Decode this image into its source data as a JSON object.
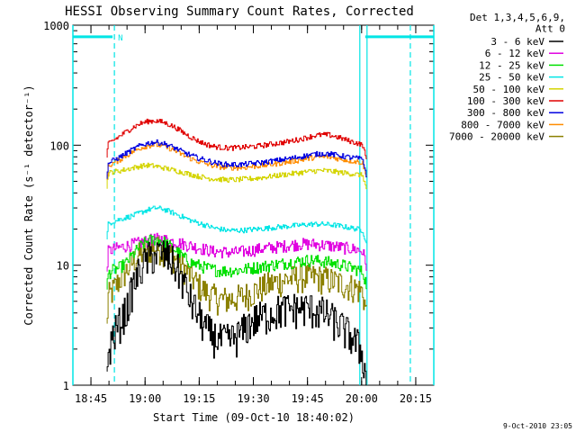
{
  "chart_data": {
    "type": "line",
    "title": "HESSI Observing Summary Count Rates, Corrected",
    "xlabel": "Start Time (09-Oct-10 18:40:02)",
    "ylabel": "Corrected Count Rate (s⁻¹ detector⁻¹)",
    "y_scale": "log",
    "ylim": [
      1,
      1000
    ],
    "xlim_minutes_after_1840": [
      0,
      100
    ],
    "xticks": [
      {
        "label": "18:45",
        "t": 5
      },
      {
        "label": "19:00",
        "t": 20
      },
      {
        "label": "19:15",
        "t": 35
      },
      {
        "label": "19:30",
        "t": 50
      },
      {
        "label": "19:45",
        "t": 65
      },
      {
        "label": "20:00",
        "t": 80
      },
      {
        "label": "20:15",
        "t": 95
      }
    ],
    "yticks": [
      {
        "label": "1000",
        "v": 1000
      },
      {
        "label": "100",
        "v": 100
      },
      {
        "label": "10",
        "v": 10
      },
      {
        "label": "1",
        "v": 1
      }
    ],
    "legend_header": [
      "Det 1,3,4,5,6,9,",
      "Att 0"
    ],
    "legend_position": "right",
    "night_marker_label": "N",
    "night_bar": {
      "value": 800,
      "color": "#00e5e5",
      "segments": [
        [
          0,
          11
        ],
        [
          81,
          100
        ]
      ]
    },
    "boundaries": [
      {
        "t": 11.5,
        "style": "dashed",
        "color": "#00e5e5"
      },
      {
        "t": 79.5,
        "style": "solid",
        "color": "#00e5e5"
      },
      {
        "t": 81.5,
        "style": "solid",
        "color": "#00e5e5"
      },
      {
        "t": 93.5,
        "style": "dashed",
        "color": "#00e5e5"
      }
    ],
    "edge_lines": [
      {
        "t": 0,
        "color": "#00e5e5"
      },
      {
        "t": 100,
        "color": "#00e5e5"
      }
    ],
    "series": [
      {
        "name": "3 - 6 keV",
        "color": "#000000",
        "t": [
          9.5,
          10,
          11,
          13,
          15,
          17,
          19,
          21,
          23,
          25,
          27,
          29,
          31,
          33,
          35,
          37,
          39,
          41,
          43,
          45,
          47,
          49,
          51,
          53,
          55,
          57,
          59,
          61,
          63,
          65,
          67,
          69,
          71,
          73,
          75,
          77,
          79,
          80.5,
          81.5
        ],
        "values": [
          1,
          1.8,
          2.5,
          3.3,
          4.3,
          7,
          9.5,
          11.5,
          12.5,
          12.5,
          11.5,
          9.5,
          7,
          5,
          3.8,
          3,
          2.6,
          2.4,
          2.4,
          2.5,
          2.8,
          3.3,
          3.6,
          3.8,
          4,
          4.2,
          4.3,
          4.4,
          4.4,
          4.4,
          4.3,
          4.1,
          3.8,
          3.4,
          3,
          2.6,
          2.2,
          1.8,
          1
        ]
      },
      {
        "name": "6 - 12 keV",
        "color": "#e000e0",
        "t": [
          9.5,
          10,
          11,
          13,
          15,
          17,
          19,
          21,
          23,
          25,
          27,
          29,
          31,
          33,
          35,
          37,
          39,
          41,
          43,
          45,
          47,
          49,
          51,
          53,
          55,
          57,
          59,
          61,
          63,
          65,
          67,
          69,
          71,
          73,
          75,
          77,
          79,
          80.5,
          81.5
        ],
        "values": [
          9,
          13,
          13.5,
          14,
          14.5,
          15,
          15.5,
          16,
          16.5,
          16.5,
          16,
          15.5,
          15,
          14.5,
          14,
          13.5,
          13,
          13,
          12.8,
          12.8,
          13,
          13.2,
          13.5,
          13.8,
          14,
          14.2,
          14.5,
          14.8,
          15,
          15,
          15,
          14.8,
          14.6,
          14.3,
          14,
          13.8,
          13.5,
          13,
          10
        ]
      },
      {
        "name": "12 - 25 keV",
        "color": "#00e000",
        "t": [
          9.5,
          10,
          11,
          13,
          15,
          17,
          19,
          21,
          23,
          25,
          27,
          29,
          31,
          33,
          35,
          37,
          39,
          41,
          43,
          45,
          47,
          49,
          51,
          53,
          55,
          57,
          59,
          61,
          63,
          65,
          67,
          69,
          71,
          73,
          75,
          77,
          79,
          80.5,
          81.5
        ],
        "values": [
          6,
          8.5,
          9,
          9.5,
          10.5,
          12.5,
          14.5,
          16,
          16.5,
          16,
          14.5,
          13,
          11.5,
          10.5,
          10,
          9.5,
          9.2,
          9,
          9,
          9,
          9.2,
          9.4,
          9.6,
          9.8,
          10,
          10.2,
          10.4,
          10.6,
          10.8,
          11,
          11,
          10.8,
          10.6,
          10.3,
          10,
          9.6,
          9.2,
          8.8,
          7
        ]
      },
      {
        "name": "25 - 50 keV",
        "color": "#00e5e5",
        "t": [
          9.5,
          10,
          11,
          13,
          15,
          17,
          19,
          21,
          23,
          25,
          27,
          29,
          31,
          33,
          35,
          37,
          39,
          41,
          43,
          45,
          47,
          49,
          51,
          53,
          55,
          57,
          59,
          61,
          63,
          65,
          67,
          69,
          71,
          73,
          75,
          77,
          79,
          80.5,
          81.5
        ],
        "values": [
          16,
          22,
          23,
          24,
          25,
          26,
          27.5,
          29,
          30,
          29.5,
          28,
          26.5,
          25,
          23.5,
          22.5,
          21.5,
          20.5,
          20,
          19.5,
          19.5,
          19.5,
          19.8,
          20,
          20.2,
          20.5,
          20.8,
          21,
          21.3,
          21.5,
          21.8,
          22,
          22,
          21.8,
          21.5,
          21,
          20.5,
          20,
          19.5,
          15
        ]
      },
      {
        "name": "50 - 100 keV",
        "color": "#d4d400",
        "t": [
          9.5,
          10,
          11,
          13,
          15,
          17,
          19,
          21,
          23,
          25,
          27,
          29,
          31,
          33,
          35,
          37,
          39,
          41,
          43,
          45,
          47,
          49,
          51,
          53,
          55,
          57,
          59,
          61,
          63,
          65,
          67,
          69,
          71,
          73,
          75,
          77,
          79,
          80.5,
          81.5
        ],
        "values": [
          45,
          58,
          60,
          61,
          63,
          65,
          67,
          68,
          67,
          65,
          63,
          61,
          59,
          57,
          55,
          53.5,
          52.5,
          52,
          51.5,
          51.5,
          52,
          52.5,
          53,
          54,
          55,
          56,
          57,
          58,
          59,
          60,
          61,
          61.5,
          61,
          60,
          59,
          58,
          57,
          56,
          43
        ]
      },
      {
        "name": "100 - 300 keV",
        "color": "#e00000",
        "t": [
          9.5,
          10,
          11,
          13,
          15,
          17,
          19,
          21,
          23,
          25,
          27,
          29,
          31,
          33,
          35,
          37,
          39,
          41,
          43,
          45,
          47,
          49,
          51,
          53,
          55,
          57,
          59,
          61,
          63,
          65,
          67,
          69,
          71,
          73,
          75,
          77,
          79,
          80.5,
          81.5
        ],
        "values": [
          80,
          102,
          108,
          118,
          130,
          142,
          152,
          158,
          160,
          156,
          148,
          138,
          126,
          116,
          108,
          102,
          98,
          96,
          95,
          95,
          96,
          97,
          98,
          100,
          102,
          104,
          106,
          109,
          112,
          116,
          120,
          122,
          122,
          118,
          113,
          108,
          104,
          100,
          76
        ]
      },
      {
        "name": "300 - 800 keV",
        "color": "#0000e0",
        "t": [
          9.5,
          10,
          11,
          13,
          15,
          17,
          19,
          21,
          23,
          25,
          27,
          29,
          31,
          33,
          35,
          37,
          39,
          41,
          43,
          45,
          47,
          49,
          51,
          53,
          55,
          57,
          59,
          61,
          63,
          65,
          67,
          69,
          71,
          73,
          75,
          77,
          79,
          80.5,
          81.5
        ],
        "values": [
          55,
          70,
          74,
          79,
          86,
          93,
          100,
          104,
          106,
          104,
          99,
          93,
          87,
          82,
          78,
          75,
          72,
          70,
          69,
          69,
          69,
          70,
          71,
          72,
          73.5,
          75,
          76.5,
          78,
          80,
          82,
          84,
          85,
          85,
          83,
          81,
          79,
          78,
          76,
          57
        ]
      },
      {
        "name": "800 - 7000 keV",
        "color": "#ff8c00",
        "t": [
          9.5,
          10,
          11,
          13,
          15,
          17,
          19,
          21,
          23,
          25,
          27,
          29,
          31,
          33,
          35,
          37,
          39,
          41,
          43,
          45,
          47,
          49,
          51,
          53,
          55,
          57,
          59,
          61,
          63,
          65,
          67,
          69,
          71,
          73,
          75,
          77,
          79,
          80.5,
          81.5
        ],
        "values": [
          52,
          66,
          70,
          75,
          82,
          89,
          95,
          99,
          101,
          99,
          94,
          88,
          82,
          77,
          73,
          70,
          67.5,
          66,
          65,
          65,
          65,
          66,
          67,
          68,
          69,
          70.5,
          72,
          73.5,
          75,
          77,
          79,
          80,
          80,
          78,
          76,
          74,
          73,
          71,
          54
        ]
      },
      {
        "name": "7000 - 20000 keV",
        "color": "#8b8000",
        "t": [
          9.5,
          10,
          11,
          13,
          15,
          17,
          19,
          21,
          23,
          25,
          27,
          29,
          31,
          33,
          35,
          37,
          39,
          41,
          43,
          45,
          47,
          49,
          51,
          53,
          55,
          57,
          59,
          61,
          63,
          65,
          67,
          69,
          71,
          73,
          75,
          77,
          79,
          80.5,
          81.5
        ],
        "values": [
          3,
          5.5,
          6,
          7.5,
          9,
          11,
          12.5,
          13.5,
          14,
          13.5,
          12.5,
          11,
          9.5,
          8,
          6.8,
          6,
          5.5,
          5.2,
          5.2,
          5.3,
          5.5,
          5.8,
          6.2,
          6.6,
          7,
          7.3,
          7.6,
          7.8,
          8,
          8,
          8,
          7.8,
          7.6,
          7.3,
          7,
          6.7,
          6.4,
          6,
          4
        ]
      }
    ],
    "timestamp": "9-Oct-2010 23:05"
  }
}
